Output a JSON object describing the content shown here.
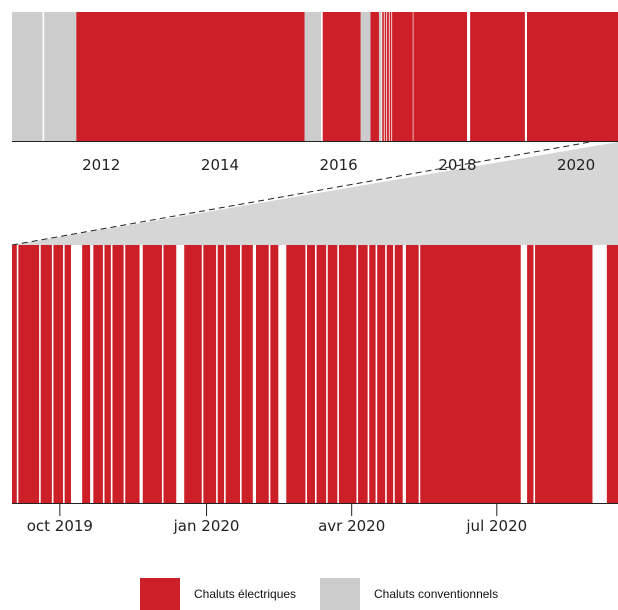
{
  "colors": {
    "electric": "#cc1f27",
    "conventional": "#cccccc",
    "zoom_fill": "#d6d6d6",
    "axis": "#222222"
  },
  "legend": {
    "electric_label": "Chaluts électriques",
    "conventional_label": "Chaluts conventionnels"
  },
  "chart_data": [
    {
      "type": "bar",
      "subtype": "timeline",
      "title": "",
      "xlabel": "",
      "ylabel": "",
      "xlim": [
        "2010-07-01",
        "2020-09-15"
      ],
      "x_ticks": [
        {
          "date": "2012-01-01",
          "label": "2012"
        },
        {
          "date": "2014-01-01",
          "label": "2014"
        },
        {
          "date": "2016-01-01",
          "label": "2016"
        },
        {
          "date": "2018-01-01",
          "label": "2018"
        },
        {
          "date": "2020-01-01",
          "label": "2020"
        }
      ],
      "series": [
        {
          "name": "Chaluts conventionnels",
          "color_key": "conventional",
          "periods": [
            [
              "2010-07-01",
              "2011-01-05"
            ],
            [
              "2011-01-15",
              "2011-08-01"
            ],
            [
              "2015-06-05",
              "2015-09-15"
            ],
            [
              "2016-05-15",
              "2016-07-15"
            ],
            [
              "2016-09-05",
              "2016-09-20"
            ]
          ]
        },
        {
          "name": "Chaluts électriques",
          "color_key": "electric",
          "periods": [
            [
              "2011-08-01",
              "2015-06-05"
            ],
            [
              "2015-09-25",
              "2016-05-15"
            ],
            [
              "2016-07-15",
              "2016-09-05"
            ],
            [
              "2016-09-25",
              "2016-10-05"
            ],
            [
              "2016-10-10",
              "2016-10-20"
            ],
            [
              "2016-10-25",
              "2016-11-05"
            ],
            [
              "2016-11-10",
              "2016-11-20"
            ],
            [
              "2016-11-25",
              "2017-04-01"
            ],
            [
              "2017-04-05",
              "2018-03-01"
            ],
            [
              "2018-03-20",
              "2019-02-20"
            ],
            [
              "2019-03-05",
              "2020-09-15"
            ]
          ]
        }
      ]
    },
    {
      "type": "bar",
      "subtype": "timeline",
      "title": "",
      "xlabel": "",
      "ylabel": "",
      "xlim": [
        "2019-09-01",
        "2020-09-15"
      ],
      "x_ticks": [
        {
          "date": "2019-10-01",
          "label": "oct 2019"
        },
        {
          "date": "2020-01-01",
          "label": "jan 2020"
        },
        {
          "date": "2020-04-01",
          "label": "avr 2020"
        },
        {
          "date": "2020-07-01",
          "label": "jul 2020"
        }
      ],
      "series": [
        {
          "name": "Chaluts électriques",
          "color_key": "electric",
          "periods": [
            [
              "2019-09-01",
              "2019-09-04"
            ],
            [
              "2019-09-05",
              "2019-09-18"
            ],
            [
              "2019-09-19",
              "2019-09-26"
            ],
            [
              "2019-09-27",
              "2019-10-03"
            ],
            [
              "2019-10-04",
              "2019-10-08"
            ],
            [
              "2019-10-15",
              "2019-10-20"
            ],
            [
              "2019-10-22",
              "2019-10-28"
            ],
            [
              "2019-10-29",
              "2019-11-02"
            ],
            [
              "2019-11-03",
              "2019-11-10"
            ],
            [
              "2019-11-11",
              "2019-11-20"
            ],
            [
              "2019-11-22",
              "2019-12-04"
            ],
            [
              "2019-12-05",
              "2019-12-13"
            ],
            [
              "2019-12-18",
              "2019-12-29"
            ],
            [
              "2019-12-30",
              "2020-01-07"
            ],
            [
              "2020-01-08",
              "2020-01-12"
            ],
            [
              "2020-01-13",
              "2020-01-22"
            ],
            [
              "2020-01-23",
              "2020-01-30"
            ],
            [
              "2020-02-01",
              "2020-02-09"
            ],
            [
              "2020-02-10",
              "2020-02-15"
            ],
            [
              "2020-02-20",
              "2020-03-03"
            ],
            [
              "2020-03-04",
              "2020-03-09"
            ],
            [
              "2020-03-10",
              "2020-03-16"
            ],
            [
              "2020-03-17",
              "2020-03-23"
            ],
            [
              "2020-03-24",
              "2020-04-04"
            ],
            [
              "2020-04-05",
              "2020-04-11"
            ],
            [
              "2020-04-12",
              "2020-04-16"
            ],
            [
              "2020-04-17",
              "2020-04-22"
            ],
            [
              "2020-04-23",
              "2020-04-27"
            ],
            [
              "2020-04-28",
              "2020-05-03"
            ],
            [
              "2020-05-05",
              "2020-05-13"
            ],
            [
              "2020-05-14",
              "2020-07-16"
            ],
            [
              "2020-07-20",
              "2020-07-24"
            ],
            [
              "2020-07-25",
              "2020-08-30"
            ],
            [
              "2020-09-08",
              "2020-09-15"
            ]
          ]
        }
      ]
    }
  ]
}
